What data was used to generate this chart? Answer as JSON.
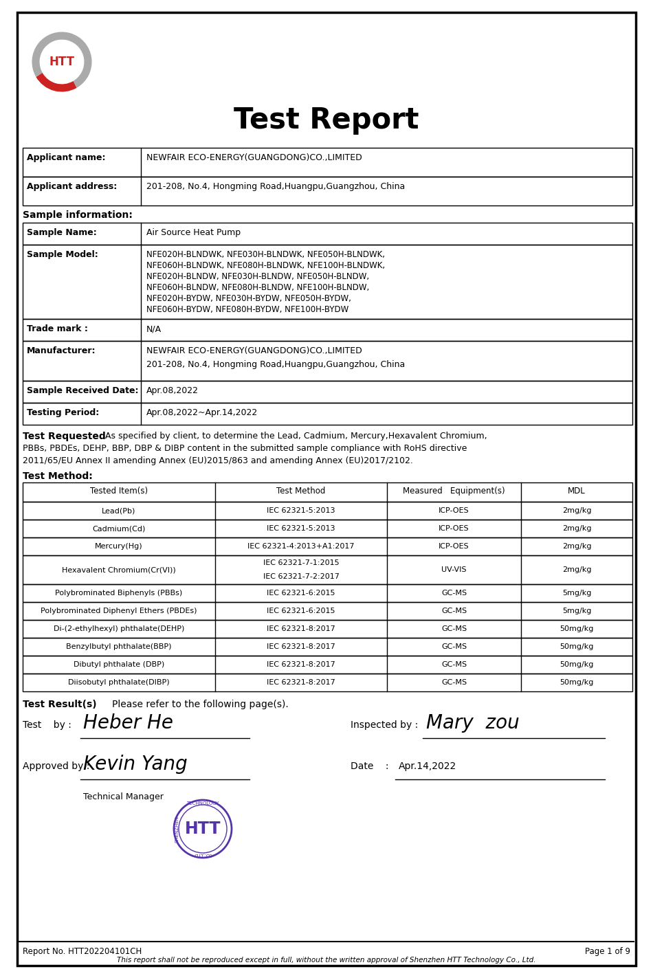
{
  "title": "Test Report",
  "bg_color": "#ffffff",
  "applicant_name": "NEWFAIR ECO-ENERGY(GUANGDONG)CO.,LIMITED",
  "applicant_address": "201-208, No.4, Hongming Road,Huangpu,Guangzhou, China",
  "sample_name": "Air Source Heat Pump",
  "sample_model_lines": [
    "NFE020H-BLNDWK, NFE030H-BLNDWK, NFE050H-BLNDWK,",
    "NFE060H-BLNDWK, NFE080H-BLNDWK, NFE100H-BLNDWK,",
    "NFE020H-BLNDW, NFE030H-BLNDW, NFE050H-BLNDW,",
    "NFE060H-BLNDW, NFE080H-BLNDW, NFE100H-BLNDW,",
    "NFE020H-BYDW, NFE030H-BYDW, NFE050H-BYDW,",
    "NFE060H-BYDW, NFE080H-BYDW, NFE100H-BYDW"
  ],
  "trade_mark": "N/A",
  "manufacturer_lines": [
    "NEWFAIR ECO-ENERGY(GUANGDONG)CO.,LIMITED",
    "201-208, No.4, Hongming Road,Huangpu,Guangzhou, China"
  ],
  "sample_received_date": "Apr.08,2022",
  "testing_period": "Apr.08,2022~Apr.14,2022",
  "tr_line1": "As specified by client, to determine the Lead, Cadmium, Mercury,Hexavalent Chromium,",
  "tr_line2": "PBBs, PBDEs, DEHP, BBP, DBP & DIBP content in the submitted sample compliance with RoHS directive",
  "tr_line3": "2011/65/EU Annex II amending Annex (EU)2015/863 and amending Annex (EU)2017/2102.",
  "test_method_rows": [
    [
      "Lead(Pb)",
      "IEC 62321-5:2013",
      "ICP-OES",
      "2mg/kg"
    ],
    [
      "Cadmium(Cd)",
      "IEC 62321-5:2013",
      "ICP-OES",
      "2mg/kg"
    ],
    [
      "Mercury(Hg)",
      "IEC 62321-4:2013+A1:2017",
      "ICP-OES",
      "2mg/kg"
    ],
    [
      "Hexavalent Chromium(Cr(VI))",
      "IEC 62321-7-1:2015\nIEC 62321-7-2:2017",
      "UV-VIS",
      "2mg/kg"
    ],
    [
      "Polybrominated Biphenyls (PBBs)",
      "IEC 62321-6:2015",
      "GC-MS",
      "5mg/kg"
    ],
    [
      "Polybrominated Diphenyl Ethers (PBDEs)",
      "IEC 62321-6:2015",
      "GC-MS",
      "5mg/kg"
    ],
    [
      "Di-(2-ethylhexyl) phthalate(DEHP)",
      "IEC 62321-8:2017",
      "GC-MS",
      "50mg/kg"
    ],
    [
      "Benzylbutyl phthalate(BBP)",
      "IEC 62321-8:2017",
      "GC-MS",
      "50mg/kg"
    ],
    [
      "Dibutyl phthalate (DBP)",
      "IEC 62321-8:2017",
      "GC-MS",
      "50mg/kg"
    ],
    [
      "Diisobutyl phthalate(DIBP)",
      "IEC 62321-8:2017",
      "GC-MS",
      "50mg/kg"
    ]
  ],
  "report_no": "Report No. HTT202204101CH",
  "page": "Page 1 of 9",
  "footer_italic": "This report shall not be reproduced except in full, without the written approval of Shenzhen HTT Technology Co., Ltd."
}
